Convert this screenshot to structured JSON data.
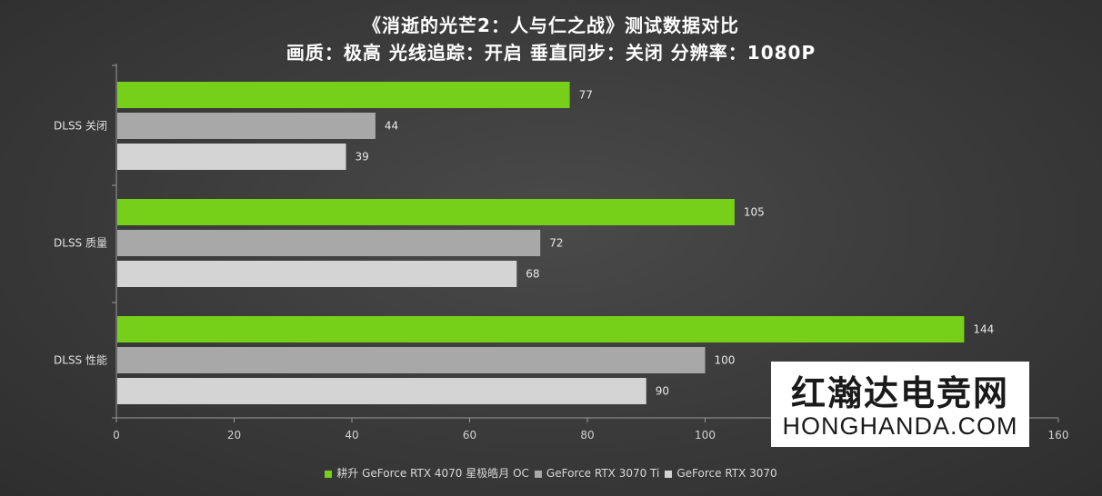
{
  "chart_data": {
    "type": "bar",
    "orientation": "horizontal",
    "title": "《消逝的光芒2：人与仁之战》测试数据对比",
    "subtitle": "画质：极高 光线追踪：开启 垂直同步：关闭 分辨率：1080P",
    "categories": [
      "DLSS 关闭",
      "DLSS 质量",
      "DLSS 性能"
    ],
    "series": [
      {
        "name": "耕升 GeForce RTX 4070 星极皓月 OC",
        "values": [
          77,
          105,
          144
        ],
        "color": "#76d01a"
      },
      {
        "name": "GeForce RTX 3070 Ti",
        "values": [
          44,
          72,
          100
        ],
        "color": "#a8a8a8"
      },
      {
        "name": "GeForce RTX 3070",
        "values": [
          39,
          68,
          90
        ],
        "color": "#d4d4d4"
      }
    ],
    "xlim": [
      0,
      160
    ],
    "xticks": [
      0,
      20,
      40,
      60,
      80,
      100,
      120,
      140,
      160
    ],
    "legend_position": "bottom",
    "grid": false
  },
  "watermark": {
    "text_cn": "红瀚达电竞网",
    "text_en": "HONGHANDA.COM"
  }
}
